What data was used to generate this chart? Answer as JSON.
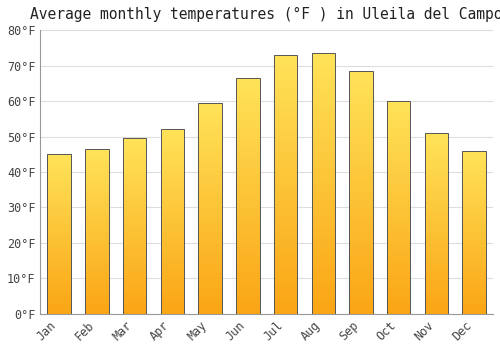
{
  "title": "Average monthly temperatures (°F ) in Uleila del Campo",
  "months": [
    "Jan",
    "Feb",
    "Mar",
    "Apr",
    "May",
    "Jun",
    "Jul",
    "Aug",
    "Sep",
    "Oct",
    "Nov",
    "Dec"
  ],
  "values": [
    45,
    46.5,
    49.5,
    52,
    59.5,
    66.5,
    73,
    73.5,
    68.5,
    60,
    51,
    46
  ],
  "background_color": "#ffffff",
  "ylim": [
    0,
    80
  ],
  "yticks": [
    0,
    10,
    20,
    30,
    40,
    50,
    60,
    70,
    80
  ],
  "ytick_labels": [
    "0°F",
    "10°F",
    "20°F",
    "30°F",
    "40°F",
    "50°F",
    "60°F",
    "70°F",
    "80°F"
  ],
  "title_fontsize": 10.5,
  "tick_fontsize": 8.5,
  "grid_color": "#dddddd",
  "bar_edge_color": "#555555",
  "bar_width": 0.62,
  "bar_color_bottom": "#F5A623",
  "bar_color_top": "#FFE066",
  "bar_color_mid": "#FFC84A"
}
